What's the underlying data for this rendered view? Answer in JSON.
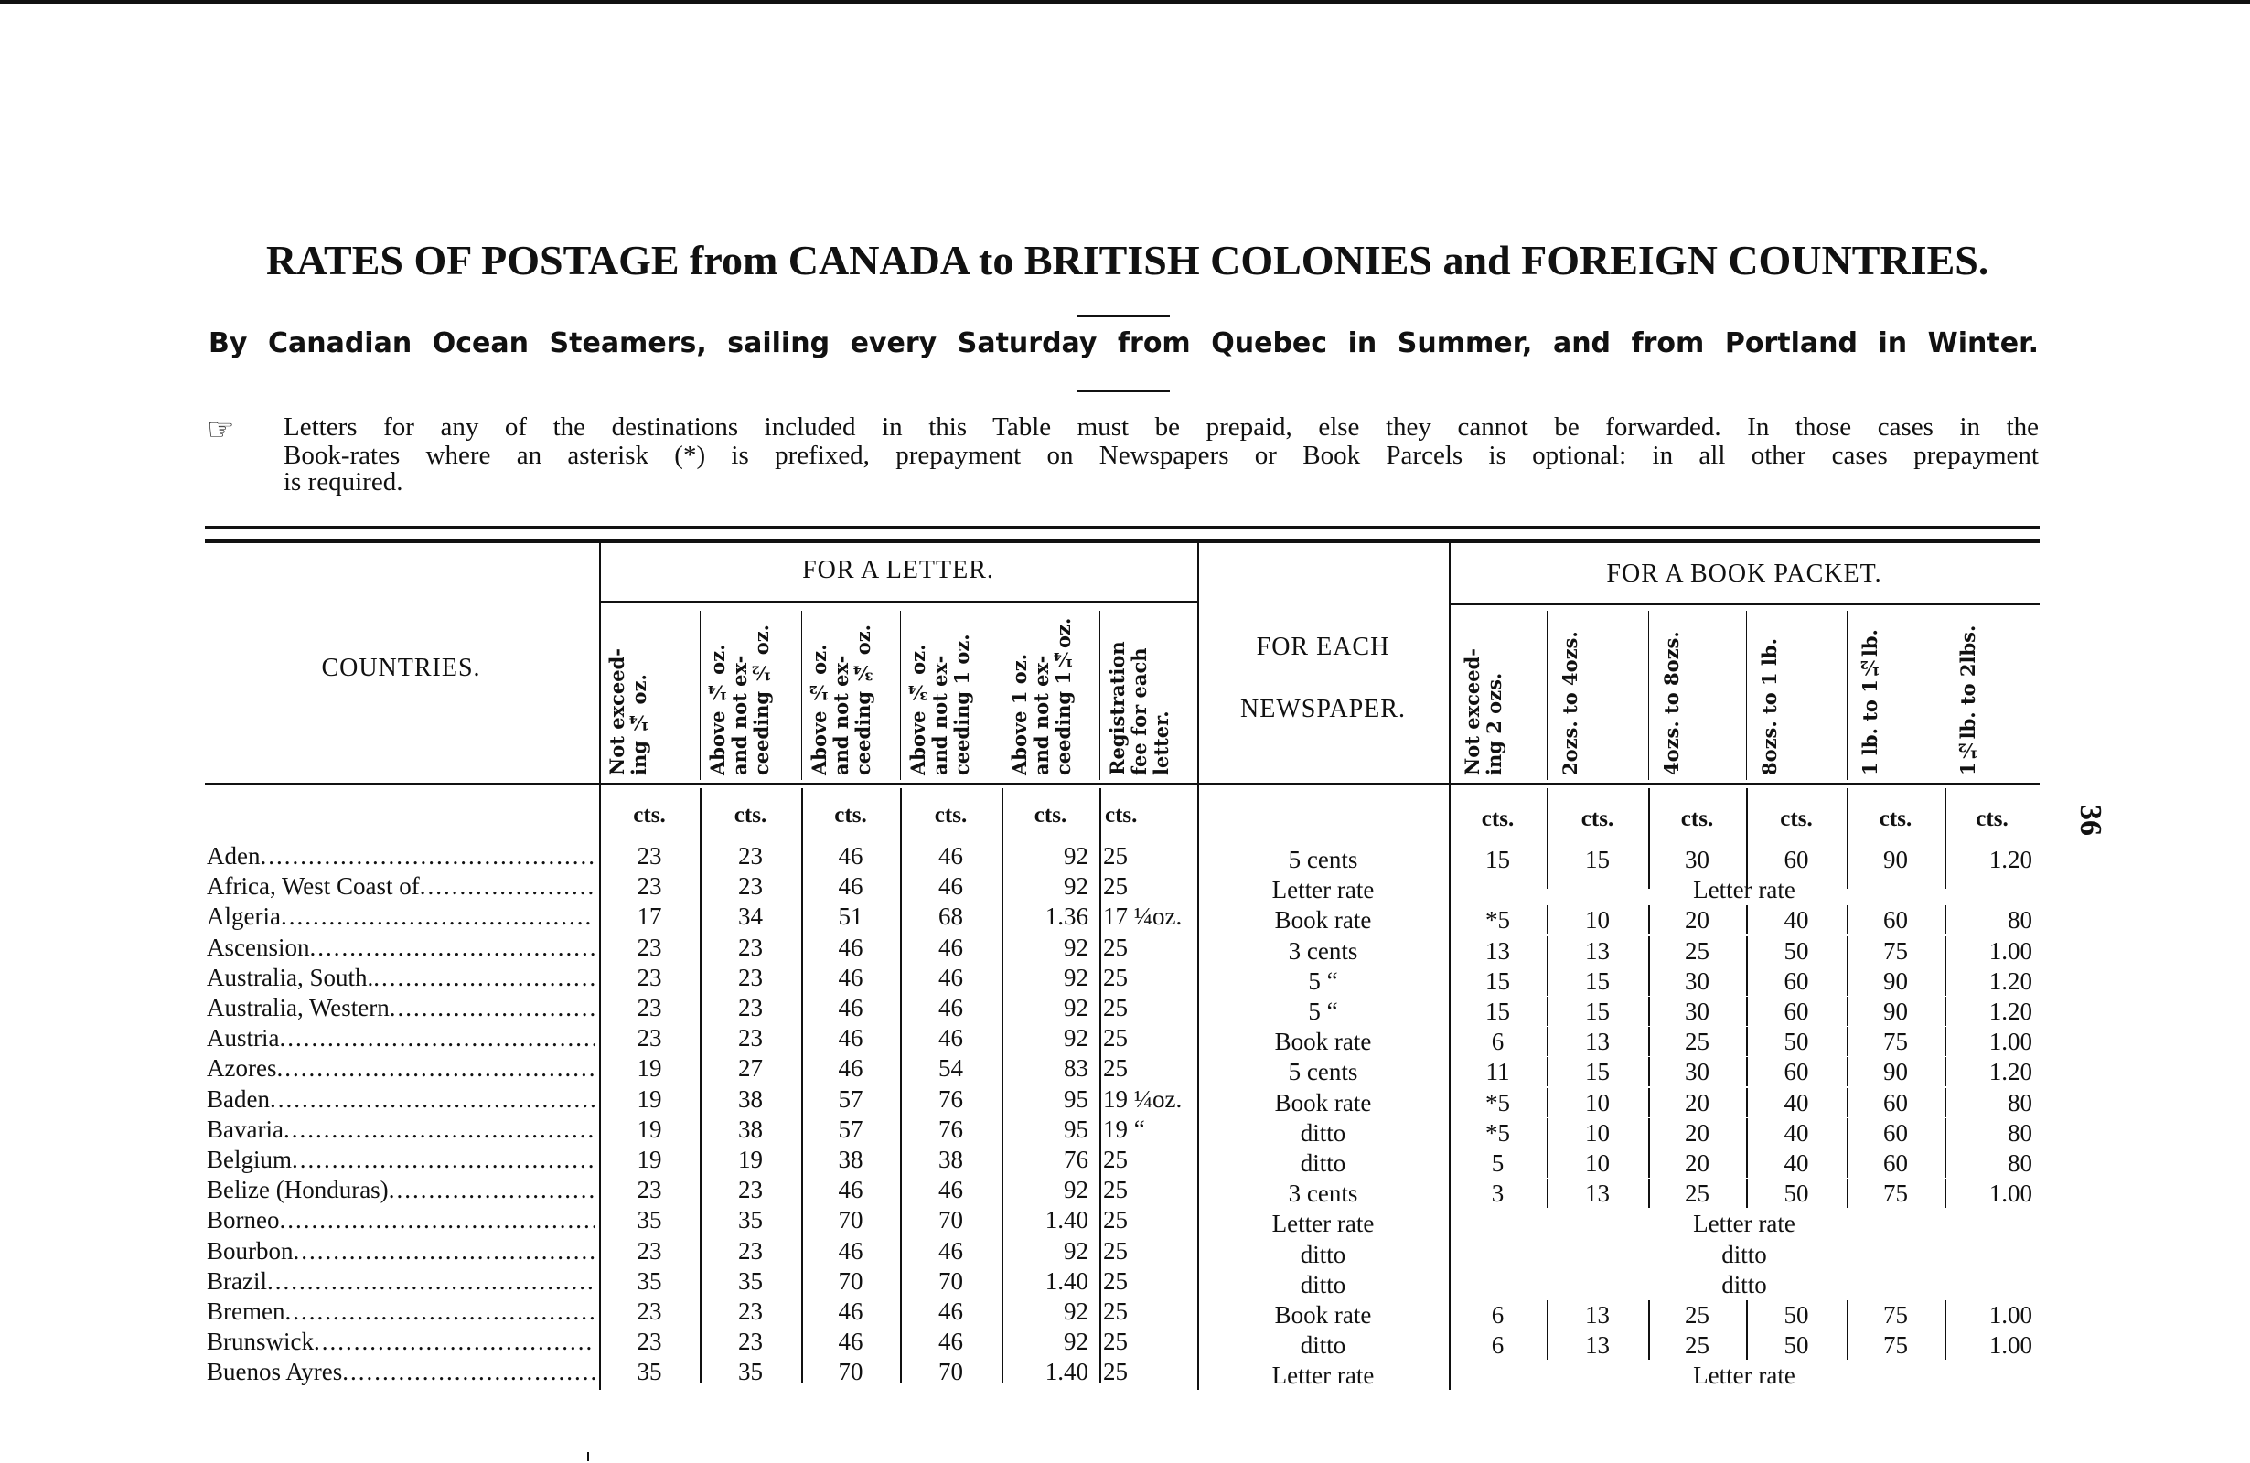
{
  "title": "RATES OF POSTAGE from CANADA to BRITISH COLONIES and FOREIGN COUNTRIES.",
  "subtitle": "By Canadian Ocean Steamers, sailing every Saturday from Quebec in Summer, and from Portland in Winter.",
  "note": {
    "icon": "pointing-hand-icon",
    "lines": [
      "Letters for any of the destinations included in this Table must be prepaid, else they cannot be forwarded. In those cases in the",
      "Book-rates where an asterisk (*) is prefixed, prepayment on Newspapers or Book Parcels is optional: in all other cases prepayment",
      "is required."
    ]
  },
  "page_number": "36",
  "table": {
    "countries_header": "COUNTRIES.",
    "letter_header": "FOR A LETTER.",
    "newspaper_header": [
      "FOR EACH",
      "NEWSPAPER."
    ],
    "book_header": "FOR A BOOK PACKET.",
    "letter_columns": [
      "Not exceed- ing ¼ oz.",
      "Above ¼ oz. and not ex- ceeding ½ oz.",
      "Above ½ oz. and not ex- ceeding ¾ oz.",
      "Above ¾ oz. and not ex- ceeding 1 oz.",
      "Above 1 oz. and not ex- ceeding 1¼oz.",
      "Registration fee for each letter."
    ],
    "book_columns": [
      "Not exceed- ing 2 ozs.",
      "2ozs. to 4ozs.",
      "4ozs. to 8ozs.",
      "8ozs. to 1 lb.",
      "1 lb. to 1½lb.",
      "1½lb. to 2lbs."
    ],
    "unit": "cts.",
    "rows": [
      {
        "country": "Aden",
        "letter": [
          "23",
          "23",
          "46",
          "46",
          "92",
          "25"
        ],
        "newspaper": "5 cents",
        "book": [
          "15",
          "15",
          "30",
          "60",
          "90",
          "1.20"
        ]
      },
      {
        "country": "Africa, West Coast of",
        "letter": [
          "23",
          "23",
          "46",
          "46",
          "92",
          "25"
        ],
        "newspaper": "Letter rate",
        "book": "Letter rate"
      },
      {
        "country": "Algeria",
        "letter": [
          "17",
          "34",
          "51",
          "68",
          "1.36",
          "17 ¼oz."
        ],
        "newspaper": "Book rate",
        "book": [
          "*5",
          "10",
          "20",
          "40",
          "60",
          "80"
        ]
      },
      {
        "country": "Ascension",
        "letter": [
          "23",
          "23",
          "46",
          "46",
          "92",
          "25"
        ],
        "newspaper": "3 cents",
        "book": [
          "13",
          "13",
          "25",
          "50",
          "75",
          "1.00"
        ]
      },
      {
        "country": "Australia, South.",
        "letter": [
          "23",
          "23",
          "46",
          "46",
          "92",
          "25"
        ],
        "newspaper": "5   “",
        "book": [
          "15",
          "15",
          "30",
          "60",
          "90",
          "1.20"
        ]
      },
      {
        "country": "Australia, Western",
        "letter": [
          "23",
          "23",
          "46",
          "46",
          "92",
          "25"
        ],
        "newspaper": "5   “",
        "book": [
          "15",
          "15",
          "30",
          "60",
          "90",
          "1.20"
        ]
      },
      {
        "country": "Austria",
        "letter": [
          "23",
          "23",
          "46",
          "46",
          "92",
          "25"
        ],
        "newspaper": "Book rate",
        "book": [
          "6",
          "13",
          "25",
          "50",
          "75",
          "1.00"
        ]
      },
      {
        "country": "Azores",
        "letter": [
          "19",
          "27",
          "46",
          "54",
          "83",
          "25"
        ],
        "newspaper": "5 cents",
        "book": [
          "11",
          "15",
          "30",
          "60",
          "90",
          "1.20"
        ]
      },
      {
        "country": "Baden",
        "letter": [
          "19",
          "38",
          "57",
          "76",
          "95",
          "19 ¼oz."
        ],
        "newspaper": "Book rate",
        "book": [
          "*5",
          "10",
          "20",
          "40",
          "60",
          "80"
        ]
      },
      {
        "country": "Bavaria",
        "letter": [
          "19",
          "38",
          "57",
          "76",
          "95",
          "19   “"
        ],
        "newspaper": "ditto",
        "book": [
          "*5",
          "10",
          "20",
          "40",
          "60",
          "80"
        ]
      },
      {
        "country": "Belgium",
        "letter": [
          "19",
          "19",
          "38",
          "38",
          "76",
          "25"
        ],
        "newspaper": "ditto",
        "book": [
          "5",
          "10",
          "20",
          "40",
          "60",
          "80"
        ]
      },
      {
        "country": "Belize (Honduras)",
        "letter": [
          "23",
          "23",
          "46",
          "46",
          "92",
          "25"
        ],
        "newspaper": "3 cents",
        "book": [
          "3",
          "13",
          "25",
          "50",
          "75",
          "1.00"
        ]
      },
      {
        "country": "Borneo",
        "letter": [
          "35",
          "35",
          "70",
          "70",
          "1.40",
          "25"
        ],
        "newspaper": "Letter rate",
        "book": "Letter rate"
      },
      {
        "country": "Bourbon",
        "letter": [
          "23",
          "23",
          "46",
          "46",
          "92",
          "25"
        ],
        "newspaper": "ditto",
        "book": "ditto"
      },
      {
        "country": "Brazil",
        "letter": [
          "35",
          "35",
          "70",
          "70",
          "1.40",
          "25"
        ],
        "newspaper": "ditto",
        "book": "ditto"
      },
      {
        "country": "Bremen",
        "letter": [
          "23",
          "23",
          "46",
          "46",
          "92",
          "25"
        ],
        "newspaper": "Book rate",
        "book": [
          "6",
          "13",
          "25",
          "50",
          "75",
          "1.00"
        ]
      },
      {
        "country": "Brunswick",
        "letter": [
          "23",
          "23",
          "46",
          "46",
          "92",
          "25"
        ],
        "newspaper": "ditto",
        "book": [
          "6",
          "13",
          "25",
          "50",
          "75",
          "1.00"
        ]
      },
      {
        "country": "Buenos Ayres",
        "letter": [
          "35",
          "35",
          "70",
          "70",
          "1.40",
          "25"
        ],
        "newspaper": "Letter rate",
        "book": "Letter rate"
      }
    ]
  }
}
